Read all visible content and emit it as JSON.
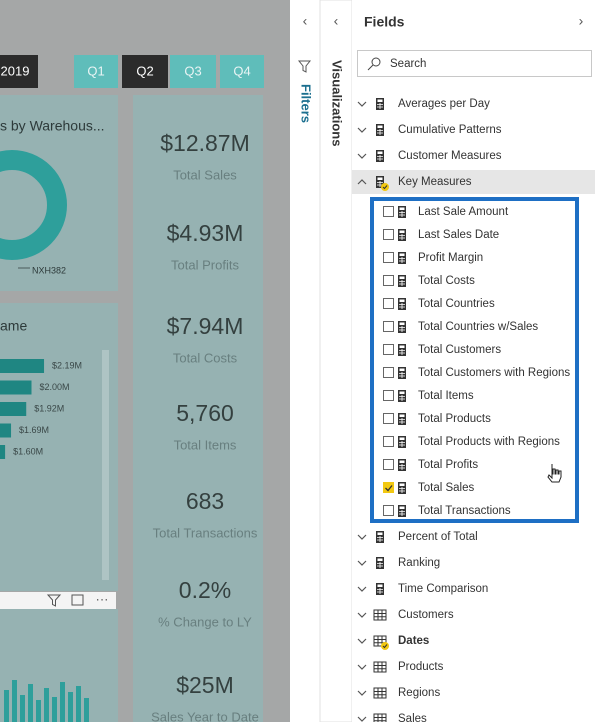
{
  "report": {
    "slicers": [
      "2019",
      "Q1",
      "Q2",
      "Q3",
      "Q4"
    ],
    "visual_titles": [
      "s by Warehous...",
      "ame"
    ],
    "donut_label": "NXH382",
    "bar_chart": {
      "values": [
        2.19,
        2.0,
        1.92,
        1.69,
        1.6
      ],
      "value_labels": [
        "$2.19M",
        "$2.00M",
        "$1.92M",
        "$1.69M",
        "$1.60M"
      ]
    },
    "cards": [
      {
        "value": "$12.87M",
        "label": "Total Sales"
      },
      {
        "value": "$4.93M",
        "label": "Total Profits"
      },
      {
        "value": "$7.94M",
        "label": "Total Costs"
      },
      {
        "value": "5,760",
        "label": "Total Items"
      },
      {
        "value": "683",
        "label": "Total Transactions"
      },
      {
        "value": "0.2%",
        "label": "% Change to LY"
      },
      {
        "value": "$25M",
        "label": "Sales Year to Date"
      }
    ]
  },
  "panes": {
    "filters": "Filters",
    "visualizations": "Visualizations"
  },
  "fields": {
    "title": "Fields",
    "search_placeholder": "Search",
    "tables_before": [
      {
        "name": "Averages per Day",
        "kind": "measures"
      },
      {
        "name": "Cumulative Patterns",
        "kind": "measures"
      },
      {
        "name": "Customer Measures",
        "kind": "measures"
      }
    ],
    "expanded_table": {
      "name": "Key Measures",
      "kind": "measures",
      "has_selection": true,
      "measures": [
        {
          "name": "Last Sale Amount",
          "checked": false
        },
        {
          "name": "Last Sales Date",
          "checked": false
        },
        {
          "name": "Profit Margin",
          "checked": false
        },
        {
          "name": "Total Costs",
          "checked": false
        },
        {
          "name": "Total Countries",
          "checked": false
        },
        {
          "name": "Total Countries w/Sales",
          "checked": false
        },
        {
          "name": "Total Customers",
          "checked": false
        },
        {
          "name": "Total Customers with Regions",
          "checked": false
        },
        {
          "name": "Total Items",
          "checked": false
        },
        {
          "name": "Total Products",
          "checked": false
        },
        {
          "name": "Total Products with Regions",
          "checked": false
        },
        {
          "name": "Total Profits",
          "checked": false
        },
        {
          "name": "Total Sales",
          "checked": true
        },
        {
          "name": "Total Transactions",
          "checked": false
        }
      ]
    },
    "tables_after": [
      {
        "name": "Percent of Total",
        "kind": "measures"
      },
      {
        "name": "Ranking",
        "kind": "measures"
      },
      {
        "name": "Time Comparison",
        "kind": "measures"
      },
      {
        "name": "Customers",
        "kind": "table"
      },
      {
        "name": "Dates",
        "kind": "table",
        "has_selection": true
      },
      {
        "name": "Products",
        "kind": "table"
      },
      {
        "name": "Regions",
        "kind": "table"
      },
      {
        "name": "Sales",
        "kind": "table"
      }
    ]
  }
}
